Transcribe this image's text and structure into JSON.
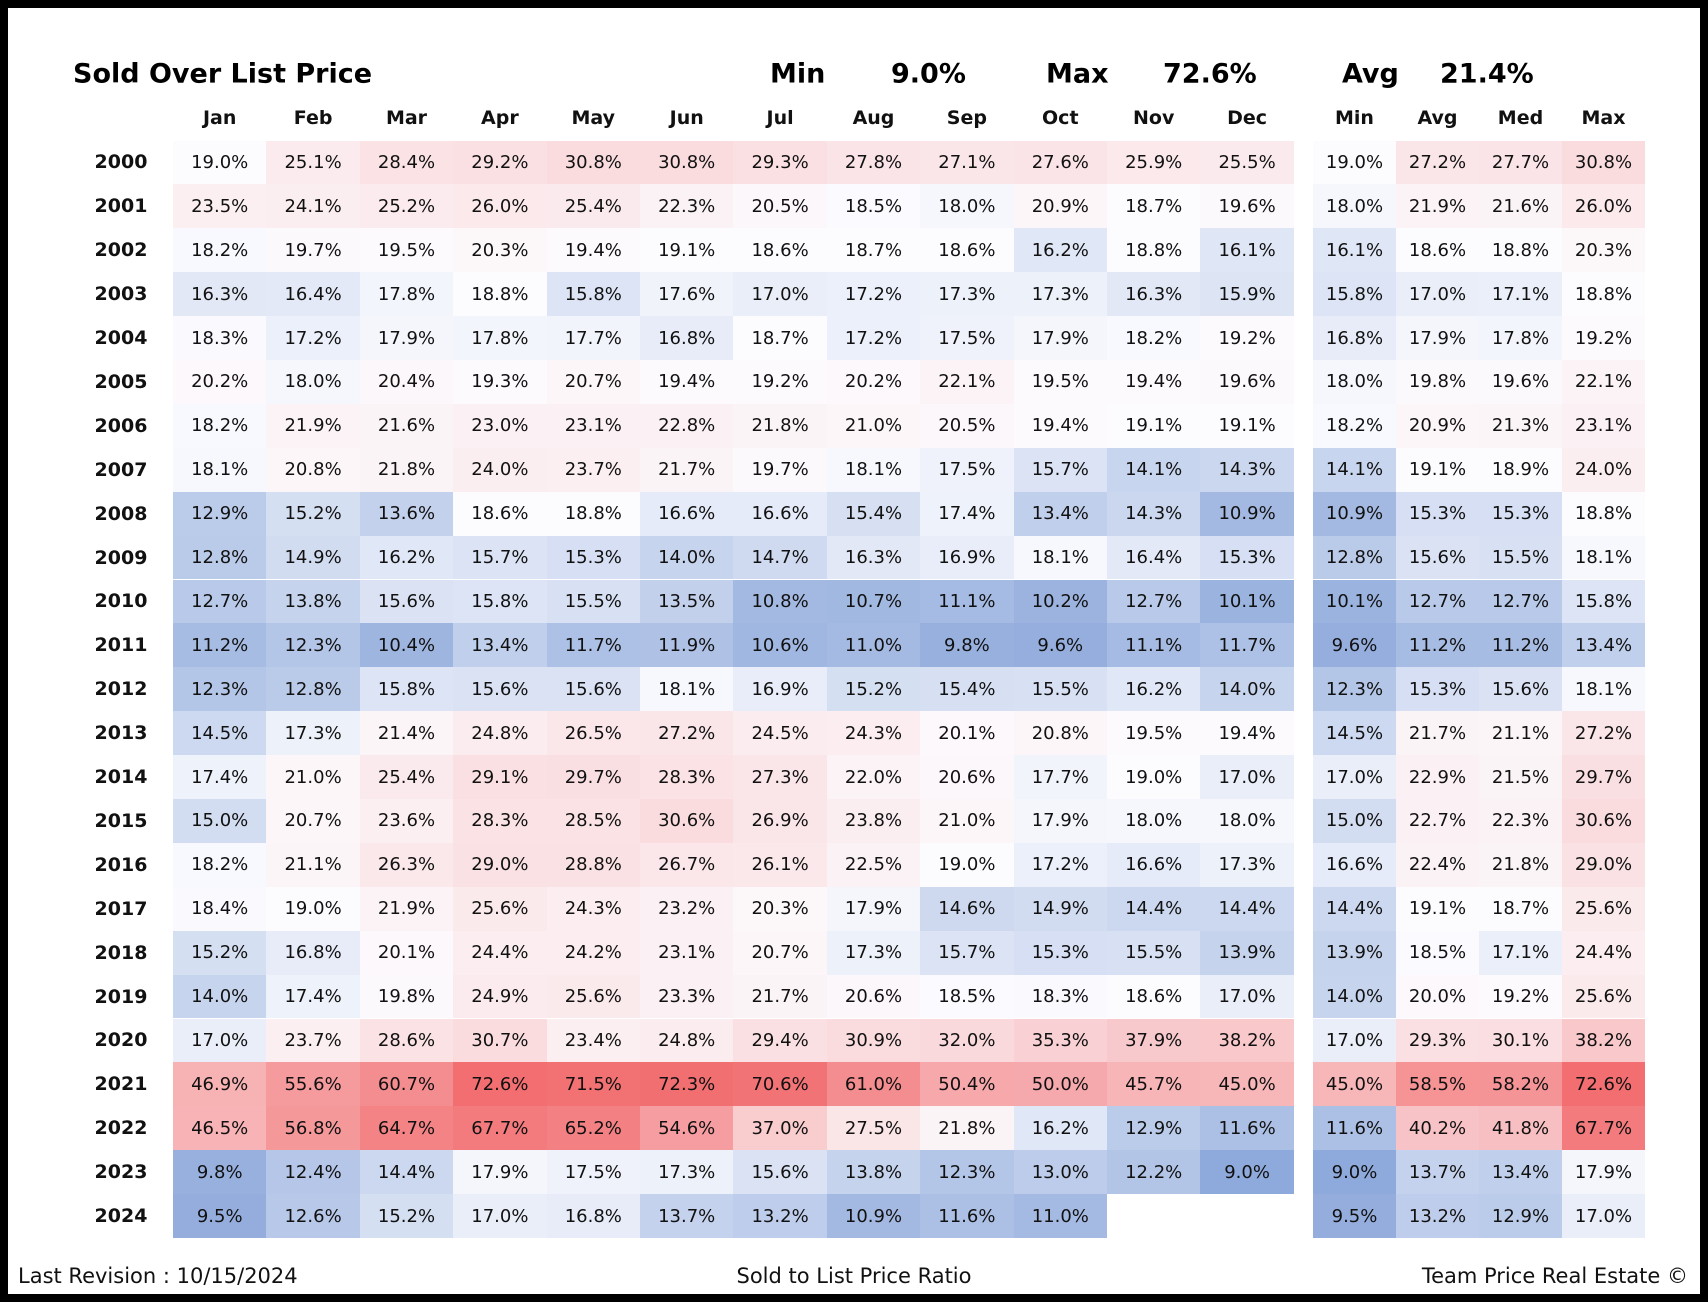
{
  "title": "Sold Over List Price",
  "summary": [
    {
      "label": "Min",
      "value": "9.0%"
    },
    {
      "label": "Max",
      "value": "72.6%"
    },
    {
      "label": "Avg",
      "value": "21.4%"
    }
  ],
  "month_headers": [
    "Jan",
    "Feb",
    "Mar",
    "Apr",
    "May",
    "Jun",
    "Jul",
    "Aug",
    "Sep",
    "Oct",
    "Nov",
    "Dec"
  ],
  "stat_headers": [
    "Min",
    "Avg",
    "Med",
    "Max"
  ],
  "rows": [
    {
      "year": "2000",
      "months": [
        "19.0%",
        "25.1%",
        "28.4%",
        "29.2%",
        "30.8%",
        "30.8%",
        "29.3%",
        "27.8%",
        "27.1%",
        "27.6%",
        "25.9%",
        "25.5%"
      ],
      "stats": [
        "19.0%",
        "27.2%",
        "27.7%",
        "30.8%"
      ]
    },
    {
      "year": "2001",
      "months": [
        "23.5%",
        "24.1%",
        "25.2%",
        "26.0%",
        "25.4%",
        "22.3%",
        "20.5%",
        "18.5%",
        "18.0%",
        "20.9%",
        "18.7%",
        "19.6%"
      ],
      "stats": [
        "18.0%",
        "21.9%",
        "21.6%",
        "26.0%"
      ]
    },
    {
      "year": "2002",
      "months": [
        "18.2%",
        "19.7%",
        "19.5%",
        "20.3%",
        "19.4%",
        "19.1%",
        "18.6%",
        "18.7%",
        "18.6%",
        "16.2%",
        "18.8%",
        "16.1%"
      ],
      "stats": [
        "16.1%",
        "18.6%",
        "18.8%",
        "20.3%"
      ]
    },
    {
      "year": "2003",
      "months": [
        "16.3%",
        "16.4%",
        "17.8%",
        "18.8%",
        "15.8%",
        "17.6%",
        "17.0%",
        "17.2%",
        "17.3%",
        "17.3%",
        "16.3%",
        "15.9%"
      ],
      "stats": [
        "15.8%",
        "17.0%",
        "17.1%",
        "18.8%"
      ]
    },
    {
      "year": "2004",
      "months": [
        "18.3%",
        "17.2%",
        "17.9%",
        "17.8%",
        "17.7%",
        "16.8%",
        "18.7%",
        "17.2%",
        "17.5%",
        "17.9%",
        "18.2%",
        "19.2%"
      ],
      "stats": [
        "16.8%",
        "17.9%",
        "17.8%",
        "19.2%"
      ]
    },
    {
      "year": "2005",
      "months": [
        "20.2%",
        "18.0%",
        "20.4%",
        "19.3%",
        "20.7%",
        "19.4%",
        "19.2%",
        "20.2%",
        "22.1%",
        "19.5%",
        "19.4%",
        "19.6%"
      ],
      "stats": [
        "18.0%",
        "19.8%",
        "19.6%",
        "22.1%"
      ]
    },
    {
      "year": "2006",
      "months": [
        "18.2%",
        "21.9%",
        "21.6%",
        "23.0%",
        "23.1%",
        "22.8%",
        "21.8%",
        "21.0%",
        "20.5%",
        "19.4%",
        "19.1%",
        "19.1%"
      ],
      "stats": [
        "18.2%",
        "20.9%",
        "21.3%",
        "23.1%"
      ]
    },
    {
      "year": "2007",
      "months": [
        "18.1%",
        "20.8%",
        "21.8%",
        "24.0%",
        "23.7%",
        "21.7%",
        "19.7%",
        "18.1%",
        "17.5%",
        "15.7%",
        "14.1%",
        "14.3%"
      ],
      "stats": [
        "14.1%",
        "19.1%",
        "18.9%",
        "24.0%"
      ]
    },
    {
      "year": "2008",
      "months": [
        "12.9%",
        "15.2%",
        "13.6%",
        "18.6%",
        "18.8%",
        "16.6%",
        "16.6%",
        "15.4%",
        "17.4%",
        "13.4%",
        "14.3%",
        "10.9%"
      ],
      "stats": [
        "10.9%",
        "15.3%",
        "15.3%",
        "18.8%"
      ]
    },
    {
      "year": "2009",
      "months": [
        "12.8%",
        "14.9%",
        "16.2%",
        "15.7%",
        "15.3%",
        "14.0%",
        "14.7%",
        "16.3%",
        "16.9%",
        "18.1%",
        "16.4%",
        "15.3%"
      ],
      "stats": [
        "12.8%",
        "15.6%",
        "15.5%",
        "18.1%"
      ]
    },
    {
      "year": "2010",
      "months": [
        "12.7%",
        "13.8%",
        "15.6%",
        "15.8%",
        "15.5%",
        "13.5%",
        "10.8%",
        "10.7%",
        "11.1%",
        "10.2%",
        "12.7%",
        "10.1%"
      ],
      "stats": [
        "10.1%",
        "12.7%",
        "12.7%",
        "15.8%"
      ]
    },
    {
      "year": "2011",
      "months": [
        "11.2%",
        "12.3%",
        "10.4%",
        "13.4%",
        "11.7%",
        "11.9%",
        "10.6%",
        "11.0%",
        "9.8%",
        "9.6%",
        "11.1%",
        "11.7%"
      ],
      "stats": [
        "9.6%",
        "11.2%",
        "11.2%",
        "13.4%"
      ]
    },
    {
      "year": "2012",
      "months": [
        "12.3%",
        "12.8%",
        "15.8%",
        "15.6%",
        "15.6%",
        "18.1%",
        "16.9%",
        "15.2%",
        "15.4%",
        "15.5%",
        "16.2%",
        "14.0%"
      ],
      "stats": [
        "12.3%",
        "15.3%",
        "15.6%",
        "18.1%"
      ]
    },
    {
      "year": "2013",
      "months": [
        "14.5%",
        "17.3%",
        "21.4%",
        "24.8%",
        "26.5%",
        "27.2%",
        "24.5%",
        "24.3%",
        "20.1%",
        "20.8%",
        "19.5%",
        "19.4%"
      ],
      "stats": [
        "14.5%",
        "21.7%",
        "21.1%",
        "27.2%"
      ]
    },
    {
      "year": "2014",
      "months": [
        "17.4%",
        "21.0%",
        "25.4%",
        "29.1%",
        "29.7%",
        "28.3%",
        "27.3%",
        "22.0%",
        "20.6%",
        "17.7%",
        "19.0%",
        "17.0%"
      ],
      "stats": [
        "17.0%",
        "22.9%",
        "21.5%",
        "29.7%"
      ]
    },
    {
      "year": "2015",
      "months": [
        "15.0%",
        "20.7%",
        "23.6%",
        "28.3%",
        "28.5%",
        "30.6%",
        "26.9%",
        "23.8%",
        "21.0%",
        "17.9%",
        "18.0%",
        "18.0%"
      ],
      "stats": [
        "15.0%",
        "22.7%",
        "22.3%",
        "30.6%"
      ]
    },
    {
      "year": "2016",
      "months": [
        "18.2%",
        "21.1%",
        "26.3%",
        "29.0%",
        "28.8%",
        "26.7%",
        "26.1%",
        "22.5%",
        "19.0%",
        "17.2%",
        "16.6%",
        "17.3%"
      ],
      "stats": [
        "16.6%",
        "22.4%",
        "21.8%",
        "29.0%"
      ]
    },
    {
      "year": "2017",
      "months": [
        "18.4%",
        "19.0%",
        "21.9%",
        "25.6%",
        "24.3%",
        "23.2%",
        "20.3%",
        "17.9%",
        "14.6%",
        "14.9%",
        "14.4%",
        "14.4%"
      ],
      "stats": [
        "14.4%",
        "19.1%",
        "18.7%",
        "25.6%"
      ]
    },
    {
      "year": "2018",
      "months": [
        "15.2%",
        "16.8%",
        "20.1%",
        "24.4%",
        "24.2%",
        "23.1%",
        "20.7%",
        "17.3%",
        "15.7%",
        "15.3%",
        "15.5%",
        "13.9%"
      ],
      "stats": [
        "13.9%",
        "18.5%",
        "17.1%",
        "24.4%"
      ]
    },
    {
      "year": "2019",
      "months": [
        "14.0%",
        "17.4%",
        "19.8%",
        "24.9%",
        "25.6%",
        "23.3%",
        "21.7%",
        "20.6%",
        "18.5%",
        "18.3%",
        "18.6%",
        "17.0%"
      ],
      "stats": [
        "14.0%",
        "20.0%",
        "19.2%",
        "25.6%"
      ]
    },
    {
      "year": "2020",
      "months": [
        "17.0%",
        "23.7%",
        "28.6%",
        "30.7%",
        "23.4%",
        "24.8%",
        "29.4%",
        "30.9%",
        "32.0%",
        "35.3%",
        "37.9%",
        "38.2%"
      ],
      "stats": [
        "17.0%",
        "29.3%",
        "30.1%",
        "38.2%"
      ]
    },
    {
      "year": "2021",
      "months": [
        "46.9%",
        "55.6%",
        "60.7%",
        "72.6%",
        "71.5%",
        "72.3%",
        "70.6%",
        "61.0%",
        "50.4%",
        "50.0%",
        "45.7%",
        "45.0%"
      ],
      "stats": [
        "45.0%",
        "58.5%",
        "58.2%",
        "72.6%"
      ]
    },
    {
      "year": "2022",
      "months": [
        "46.5%",
        "56.8%",
        "64.7%",
        "67.7%",
        "65.2%",
        "54.6%",
        "37.0%",
        "27.5%",
        "21.8%",
        "16.2%",
        "12.9%",
        "11.6%"
      ],
      "stats": [
        "11.6%",
        "40.2%",
        "41.8%",
        "67.7%"
      ]
    },
    {
      "year": "2023",
      "months": [
        "9.8%",
        "12.4%",
        "14.4%",
        "17.9%",
        "17.5%",
        "17.3%",
        "15.6%",
        "13.8%",
        "12.3%",
        "13.0%",
        "12.2%",
        "9.0%"
      ],
      "stats": [
        "9.0%",
        "13.7%",
        "13.4%",
        "17.9%"
      ]
    },
    {
      "year": "2024",
      "months": [
        "9.5%",
        "12.6%",
        "15.2%",
        "17.0%",
        "16.8%",
        "13.7%",
        "13.2%",
        "10.9%",
        "11.6%",
        "11.0%"
      ],
      "stats": [
        "9.5%",
        "13.2%",
        "12.9%",
        "17.0%"
      ]
    }
  ],
  "footer": {
    "left": "Last Revision : 10/15/2024",
    "center": "Sold to List Price Ratio",
    "right": "Team Price Real Estate ©"
  }
}
